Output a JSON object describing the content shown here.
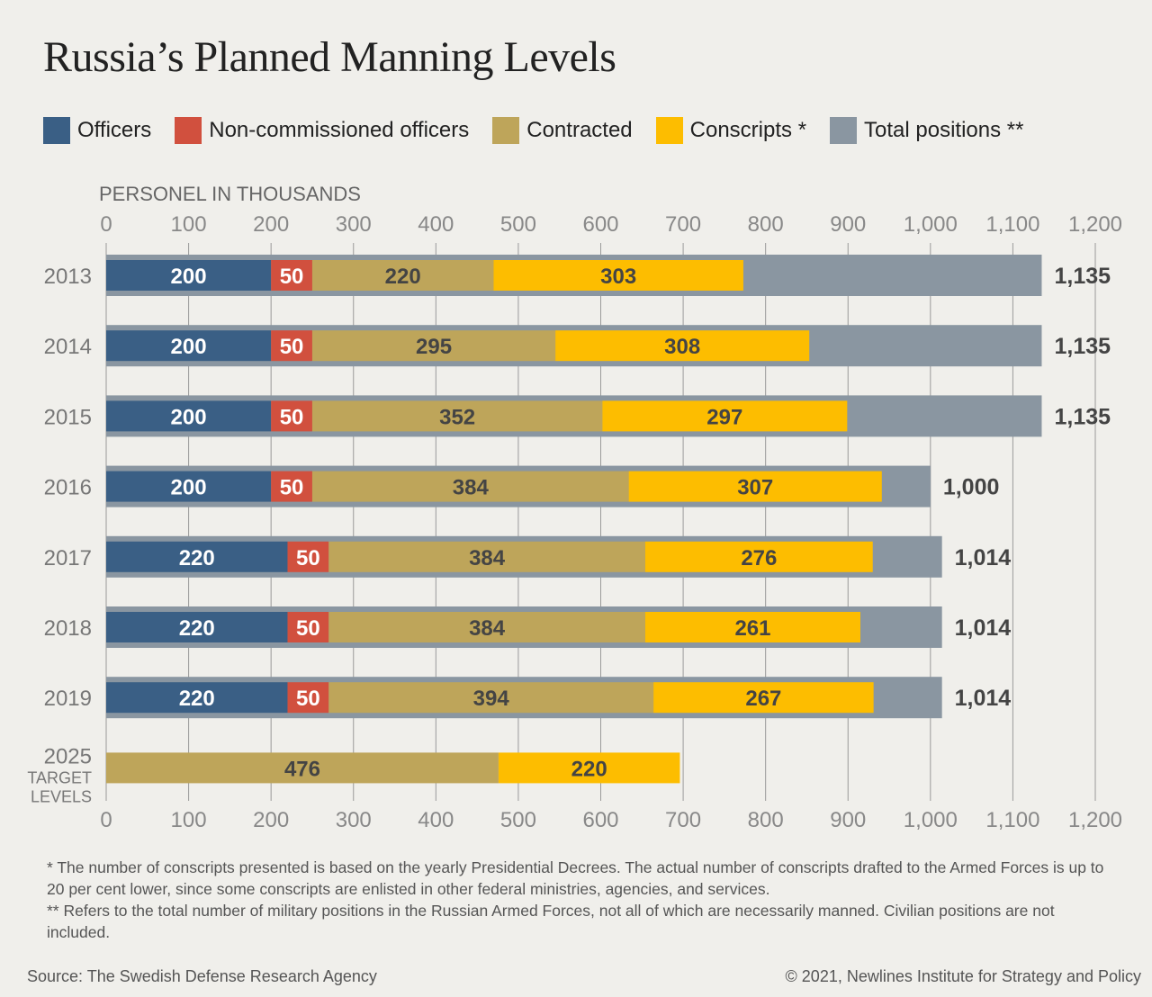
{
  "title": "Russia’s Planned Manning Levels",
  "legend": [
    {
      "label": "Officers",
      "color": "#3a5f85"
    },
    {
      "label": "Non-commissioned officers",
      "color": "#d1503e"
    },
    {
      "label": "Contracted",
      "color": "#bea55a"
    },
    {
      "label": "Conscripts *",
      "color": "#fdbd00"
    },
    {
      "label": "Total positions **",
      "color": "#8a96a1"
    }
  ],
  "chart_data": {
    "type": "bar",
    "orientation": "horizontal",
    "stacked": true,
    "xlabel": "PERSONEL IN THOUSANDS",
    "xlim": [
      0,
      1200
    ],
    "xticks": [
      "0",
      "100",
      "200",
      "300",
      "400",
      "500",
      "600",
      "700",
      "800",
      "900",
      "1,000",
      "1,100",
      "1,200"
    ],
    "grid": true,
    "categories": [
      "2013",
      "2014",
      "2015",
      "2016",
      "2017",
      "2018",
      "2019",
      "2025"
    ],
    "category_sublabels": [
      "",
      "",
      "",
      "",
      "",
      "",
      "",
      "TARGET LEVELS"
    ],
    "series": [
      {
        "name": "Officers",
        "color": "#3a5f85",
        "values": [
          200,
          200,
          200,
          200,
          220,
          220,
          220,
          null
        ]
      },
      {
        "name": "Non-commissioned officers",
        "color": "#d1503e",
        "values": [
          50,
          50,
          50,
          50,
          50,
          50,
          50,
          null
        ]
      },
      {
        "name": "Contracted",
        "color": "#bea55a",
        "values": [
          220,
          295,
          352,
          384,
          384,
          384,
          394,
          476
        ]
      },
      {
        "name": "Conscripts *",
        "color": "#fdbd00",
        "values": [
          303,
          308,
          297,
          307,
          276,
          261,
          267,
          220
        ]
      }
    ],
    "totals": {
      "name": "Total positions **",
      "color": "#8a96a1",
      "values": [
        1135,
        1135,
        1135,
        1000,
        1014,
        1014,
        1014,
        null
      ],
      "labels": [
        "1,135",
        "1,135",
        "1,135",
        "1,000",
        "1,014",
        "1,014",
        "1,014",
        ""
      ]
    }
  },
  "footnotes": [
    "* The number of conscripts presented is based on the yearly Presidential Decrees. The actual number of conscripts drafted to the Armed Forces is up to 20 per cent lower, since some conscripts are enlisted in other federal ministries, agencies, and services.",
    "** Refers to the total number of military positions in the Russian Armed Forces, not all of which are necessarily manned. Civilian positions are not included."
  ],
  "source": "Source: The Swedish Defense Research Agency",
  "copyright": "© 2021, Newlines Institute for Strategy and Policy"
}
